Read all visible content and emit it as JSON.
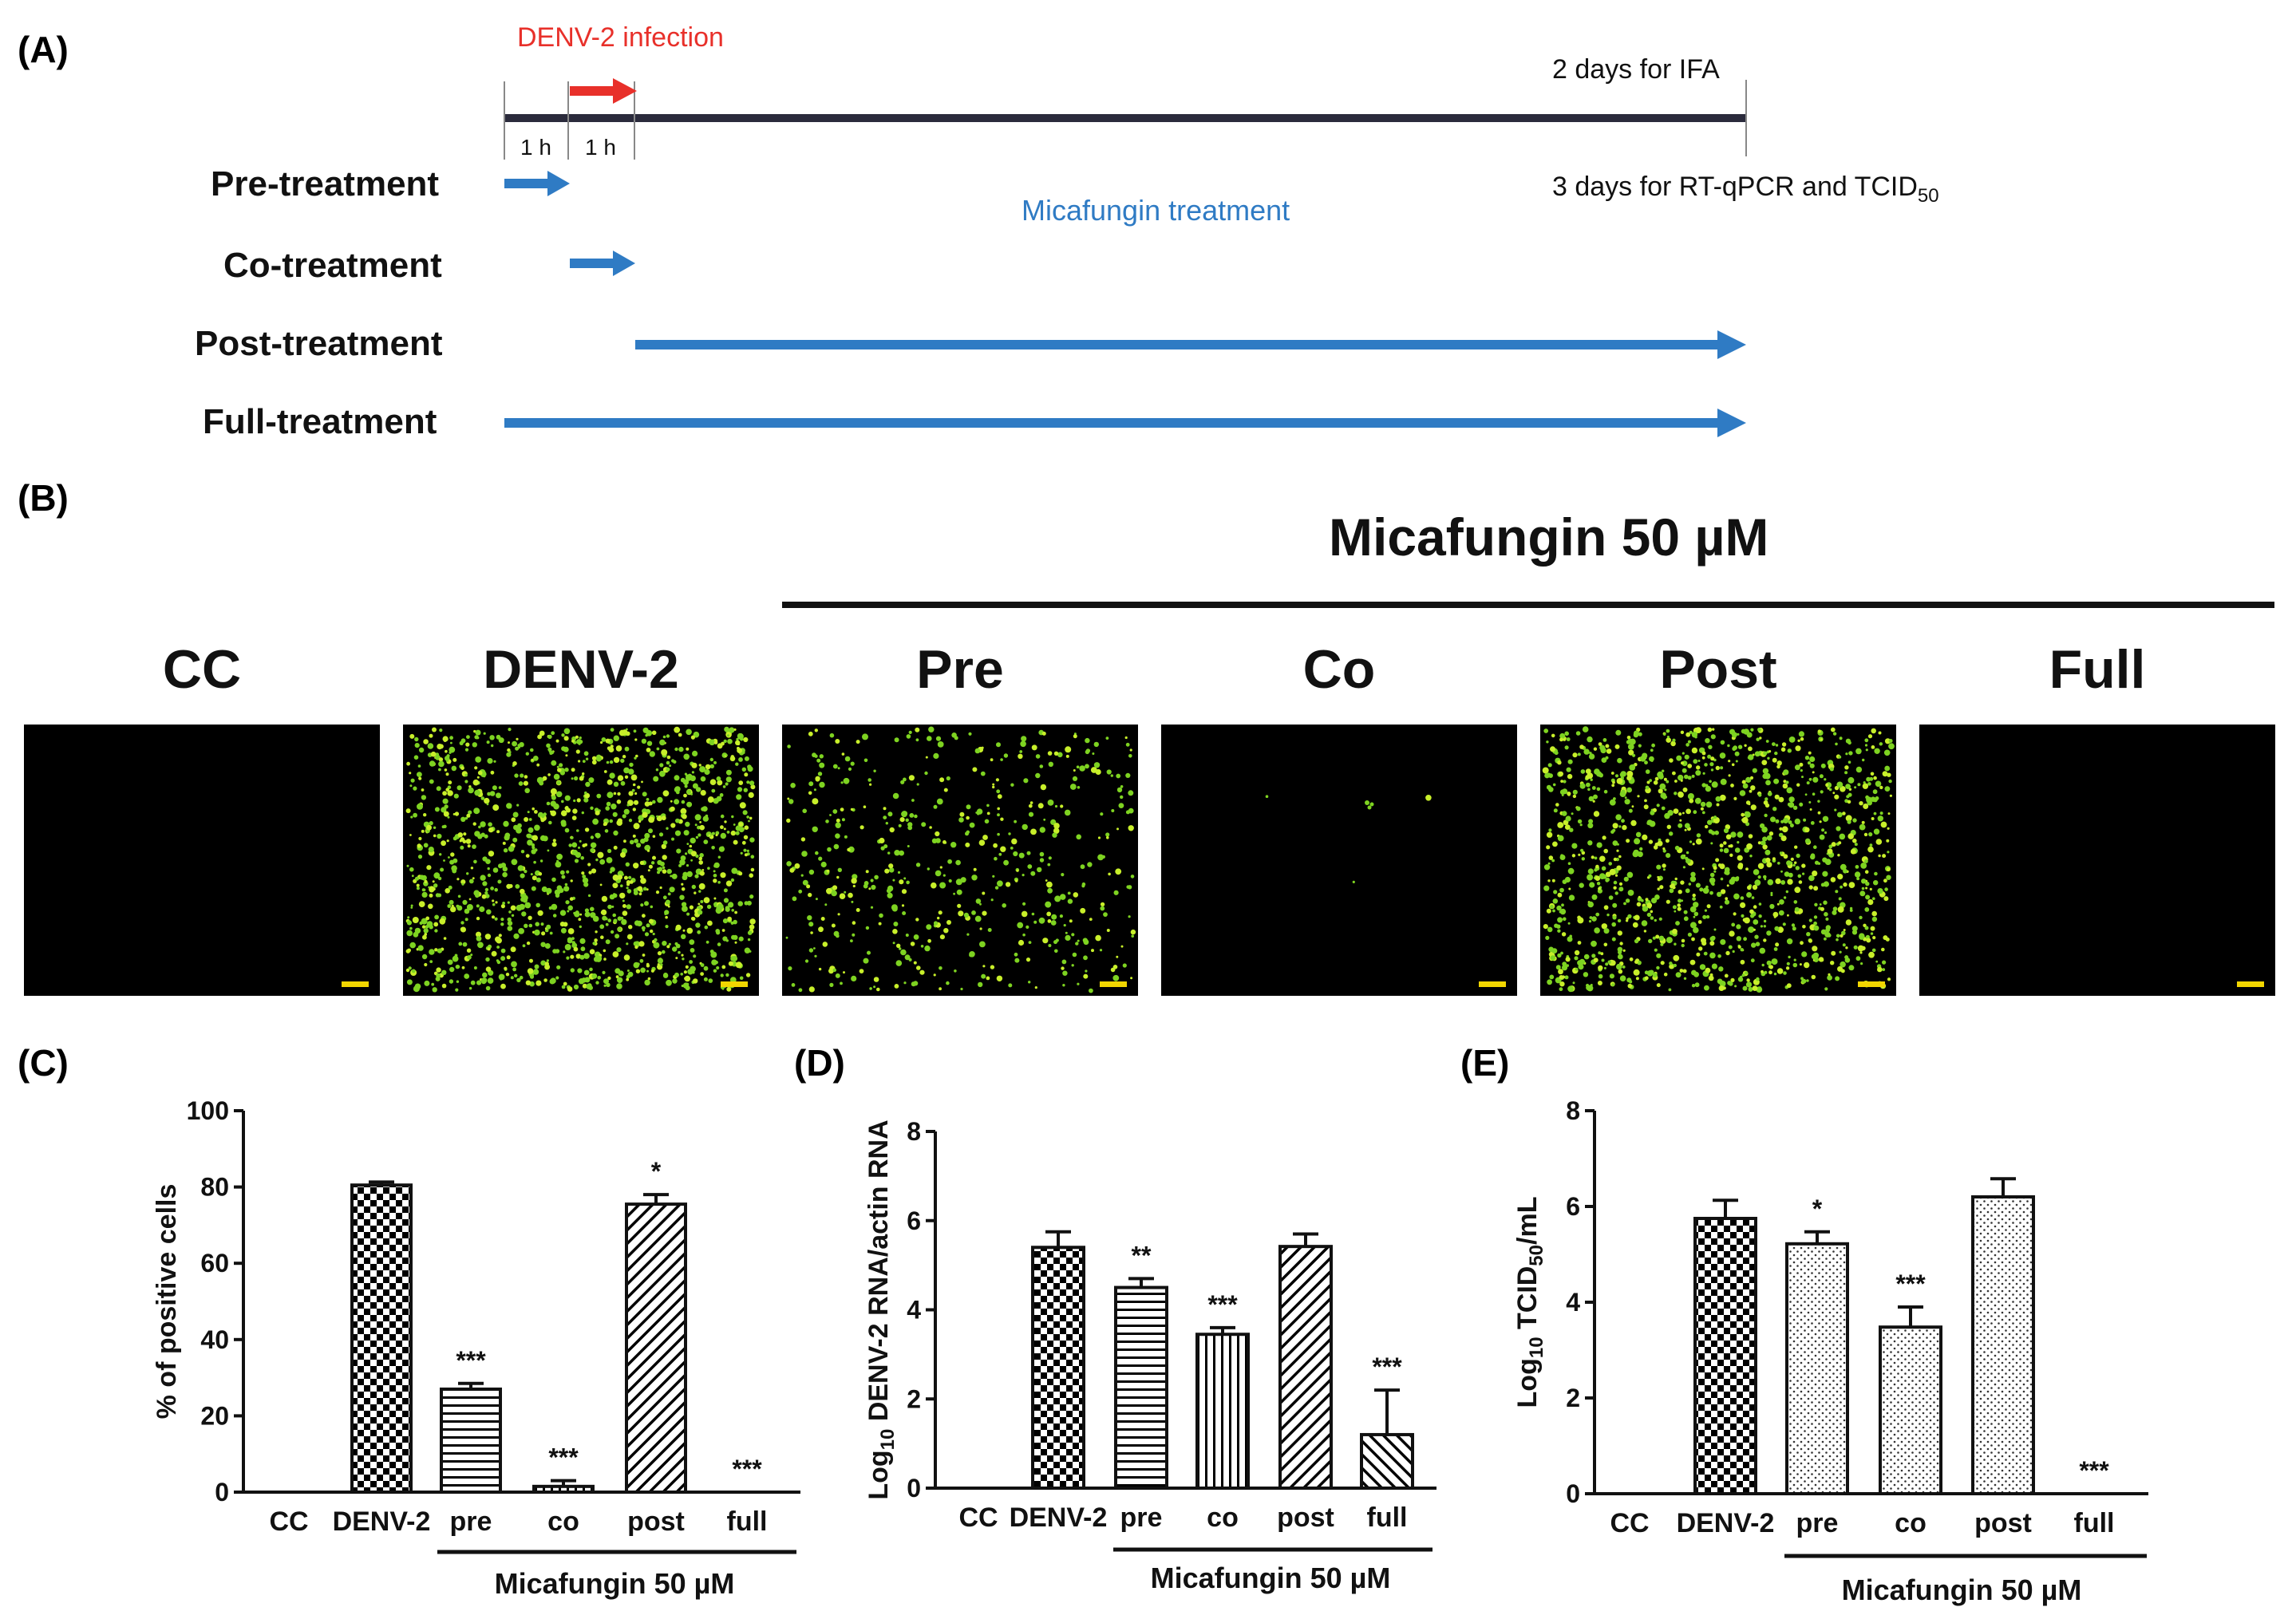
{
  "panel_labels": {
    "a": "(A)",
    "b": "(B)",
    "c": "(C)",
    "d": "(D)",
    "e": "(E)"
  },
  "timeline": {
    "infection_label": "DENV-2 infection",
    "ifa_label": "2 days for IFA",
    "rtqpcr_label": "3 days for RT-qPCR and TCID",
    "rtqpcr_sub": "50",
    "interval_1": "1 h",
    "interval_2": "1 h",
    "treatment_label": "Micafungin treatment",
    "rows": [
      "Pre-treatment",
      "Co-treatment",
      "Post-treatment",
      "Full-treatment"
    ],
    "colors": {
      "infection": "#e8302a",
      "treatment": "#2f7bc4",
      "axis": "#2b2b3c"
    }
  },
  "ifa": {
    "group_title": "Micafungin 50 µM",
    "columns": [
      "CC",
      "DENV-2",
      "Pre",
      "Co",
      "Post",
      "Full"
    ],
    "colors": {
      "signal": "#7ed321",
      "scalebar": "#f2d600",
      "background": "#000000"
    }
  },
  "chart_data": [
    {
      "type": "bar",
      "panel": "C",
      "categories": [
        "CC",
        "DENV-2",
        "pre",
        "co",
        "post",
        "full"
      ],
      "values": [
        0,
        80.5,
        27,
        1.5,
        75.5,
        0
      ],
      "errors": [
        0,
        0.8,
        1.5,
        1.5,
        2.5,
        0
      ],
      "significance": [
        "",
        "",
        "***",
        "***",
        "*",
        "***"
      ],
      "ylabel": "% of positive cells",
      "ylim": [
        0,
        100
      ],
      "yticks": [
        "0",
        "20",
        "40",
        "60",
        "80",
        "100"
      ],
      "bracket_label": "Micafungin 50 µM"
    },
    {
      "type": "bar",
      "panel": "D",
      "categories": [
        "CC",
        "DENV-2",
        "pre",
        "co",
        "post",
        "full"
      ],
      "values": [
        0,
        5.4,
        4.5,
        3.45,
        5.42,
        1.2
      ],
      "errors": [
        0,
        0.35,
        0.2,
        0.15,
        0.28,
        1.0
      ],
      "significance": [
        "",
        "",
        "**",
        "***",
        "",
        "***"
      ],
      "ylabel_pre": "Log",
      "ylabel_sub": "10",
      "ylabel_post": " DENV-2 RNA/actin RNA",
      "ylim": [
        0,
        8
      ],
      "yticks": [
        "0",
        "2",
        "4",
        "6",
        "8"
      ],
      "bracket_label": "Micafungin 50 µM"
    },
    {
      "type": "bar",
      "panel": "E",
      "categories": [
        "CC",
        "DENV-2",
        "pre",
        "co",
        "post",
        "full"
      ],
      "values": [
        0,
        5.75,
        5.22,
        3.48,
        6.2,
        0
      ],
      "errors": [
        0,
        0.38,
        0.25,
        0.42,
        0.38,
        0
      ],
      "significance": [
        "",
        "",
        "*",
        "***",
        "",
        "***"
      ],
      "ylabel_pre": "Log",
      "ylabel_sub": "10",
      "ylabel_mid": " TCID",
      "ylabel_sub2": "50",
      "ylabel_post": "/mL",
      "ylim": [
        0,
        8
      ],
      "yticks": [
        "0",
        "2",
        "4",
        "6",
        "8"
      ],
      "bracket_label": "Micafungin 50 µM"
    }
  ]
}
